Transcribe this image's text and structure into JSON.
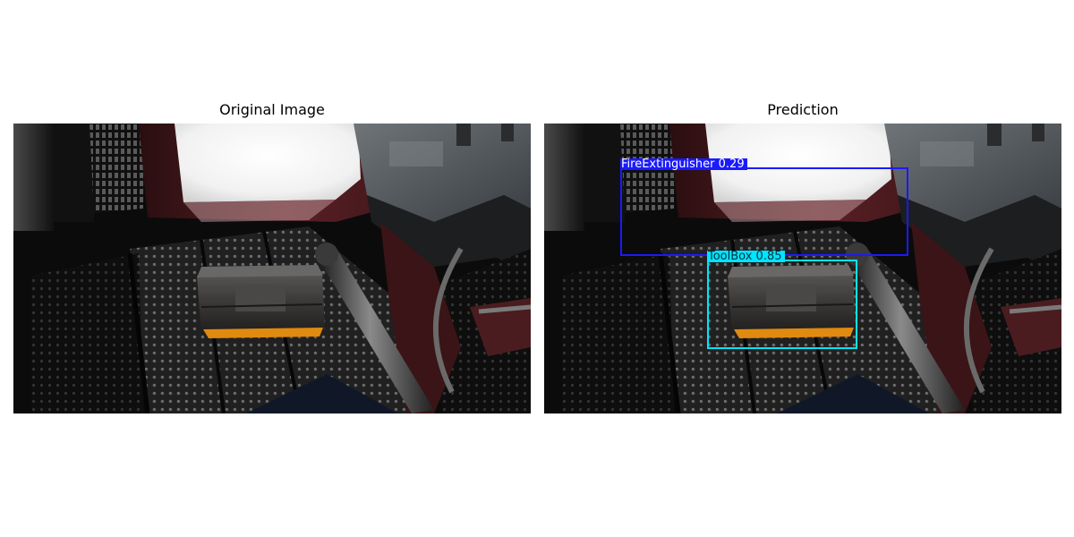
{
  "panels": {
    "original": {
      "title": "Original Image"
    },
    "prediction": {
      "title": "Prediction"
    }
  },
  "detections": [
    {
      "class": "FireExtinguisher",
      "score": "0.29",
      "label": "FireExtinguisher 0.29",
      "color": "#1a1aff",
      "text_color": "#ffffff"
    },
    {
      "class": "ToolBox",
      "score": "0.85",
      "label": "ToolBox 0.85",
      "color": "#00e5ff",
      "text_color": "#003040"
    }
  ]
}
